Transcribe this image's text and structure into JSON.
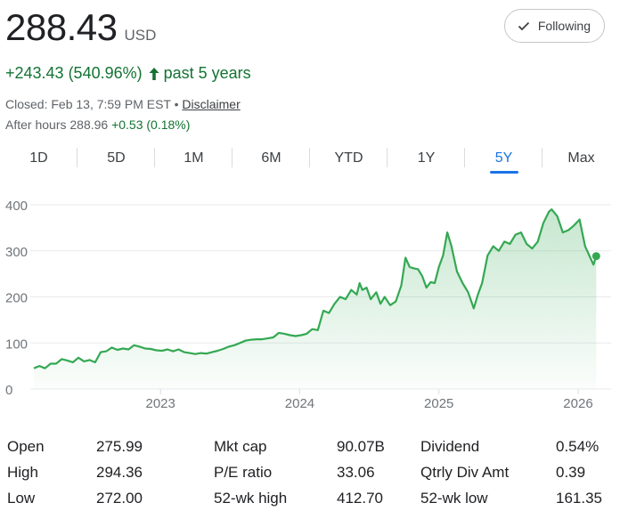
{
  "quote": {
    "price": "288.43",
    "currency": "USD",
    "change_text": "+243.43 (540.96%)",
    "period": "past 5 years",
    "closed_label": "Closed: Feb 13, 7:59 PM EST",
    "separator": " • ",
    "disclaimer": "Disclaimer",
    "after_hours_label": "After hours 288.96",
    "after_hours_change": "+0.53 (0.18%)"
  },
  "follow_button": {
    "label": "Following",
    "icon": "check-icon"
  },
  "ranges": [
    "1D",
    "5D",
    "1M",
    "6M",
    "YTD",
    "1Y",
    "5Y",
    "Max"
  ],
  "active_range": "5Y",
  "colors": {
    "up": "#137333",
    "line": "#34a853",
    "accent": "#1a73e8"
  },
  "chart_data": {
    "type": "area",
    "x_ticks": [
      "2023",
      "2024",
      "2025",
      "2026"
    ],
    "y_ticks": [
      "0",
      "100",
      "200",
      "300",
      "400"
    ],
    "xlim": [
      2022.09,
      2026.16
    ],
    "ylim": [
      0,
      400
    ],
    "points": [
      [
        2022.09,
        45
      ],
      [
        2022.13,
        50
      ],
      [
        2022.17,
        45
      ],
      [
        2022.21,
        55
      ],
      [
        2022.25,
        55
      ],
      [
        2022.29,
        65
      ],
      [
        2022.33,
        62
      ],
      [
        2022.37,
        58
      ],
      [
        2022.41,
        68
      ],
      [
        2022.45,
        60
      ],
      [
        2022.49,
        63
      ],
      [
        2022.53,
        58
      ],
      [
        2022.57,
        80
      ],
      [
        2022.61,
        82
      ],
      [
        2022.65,
        90
      ],
      [
        2022.69,
        85
      ],
      [
        2022.73,
        88
      ],
      [
        2022.77,
        86
      ],
      [
        2022.81,
        95
      ],
      [
        2022.85,
        92
      ],
      [
        2022.89,
        88
      ],
      [
        2022.93,
        87
      ],
      [
        2022.97,
        84
      ],
      [
        2023.01,
        83
      ],
      [
        2023.05,
        86
      ],
      [
        2023.09,
        82
      ],
      [
        2023.13,
        86
      ],
      [
        2023.17,
        80
      ],
      [
        2023.21,
        78
      ],
      [
        2023.25,
        76
      ],
      [
        2023.29,
        78
      ],
      [
        2023.33,
        77
      ],
      [
        2023.37,
        80
      ],
      [
        2023.41,
        83
      ],
      [
        2023.45,
        87
      ],
      [
        2023.49,
        92
      ],
      [
        2023.53,
        95
      ],
      [
        2023.57,
        100
      ],
      [
        2023.61,
        105
      ],
      [
        2023.65,
        107
      ],
      [
        2023.69,
        108
      ],
      [
        2023.73,
        108
      ],
      [
        2023.77,
        110
      ],
      [
        2023.81,
        112
      ],
      [
        2023.85,
        122
      ],
      [
        2023.89,
        120
      ],
      [
        2023.93,
        117
      ],
      [
        2023.97,
        115
      ],
      [
        2024.01,
        117
      ],
      [
        2024.05,
        120
      ],
      [
        2024.09,
        130
      ],
      [
        2024.13,
        128
      ],
      [
        2024.17,
        170
      ],
      [
        2024.21,
        165
      ],
      [
        2024.25,
        185
      ],
      [
        2024.29,
        200
      ],
      [
        2024.33,
        195
      ],
      [
        2024.37,
        215
      ],
      [
        2024.41,
        205
      ],
      [
        2024.43,
        230
      ],
      [
        2024.45,
        215
      ],
      [
        2024.48,
        220
      ],
      [
        2024.51,
        195
      ],
      [
        2024.55,
        210
      ],
      [
        2024.58,
        185
      ],
      [
        2024.61,
        200
      ],
      [
        2024.65,
        182
      ],
      [
        2024.69,
        190
      ],
      [
        2024.73,
        225
      ],
      [
        2024.76,
        285
      ],
      [
        2024.79,
        265
      ],
      [
        2024.82,
        262
      ],
      [
        2024.85,
        260
      ],
      [
        2024.88,
        245
      ],
      [
        2024.91,
        220
      ],
      [
        2024.94,
        232
      ],
      [
        2024.97,
        230
      ],
      [
        2025.0,
        265
      ],
      [
        2025.03,
        290
      ],
      [
        2025.06,
        340
      ],
      [
        2025.09,
        310
      ],
      [
        2025.13,
        255
      ],
      [
        2025.17,
        230
      ],
      [
        2025.21,
        210
      ],
      [
        2025.25,
        175
      ],
      [
        2025.28,
        205
      ],
      [
        2025.31,
        230
      ],
      [
        2025.35,
        290
      ],
      [
        2025.39,
        310
      ],
      [
        2025.43,
        300
      ],
      [
        2025.47,
        320
      ],
      [
        2025.51,
        315
      ],
      [
        2025.55,
        335
      ],
      [
        2025.59,
        340
      ],
      [
        2025.63,
        315
      ],
      [
        2025.67,
        305
      ],
      [
        2025.71,
        320
      ],
      [
        2025.75,
        360
      ],
      [
        2025.79,
        385
      ],
      [
        2025.81,
        390
      ],
      [
        2025.85,
        375
      ],
      [
        2025.89,
        340
      ],
      [
        2025.93,
        345
      ],
      [
        2025.97,
        355
      ],
      [
        2026.01,
        368
      ],
      [
        2026.05,
        310
      ],
      [
        2026.08,
        290
      ],
      [
        2026.11,
        270
      ],
      [
        2026.13,
        288.43
      ]
    ],
    "last_value": 288.43
  },
  "stats": [
    {
      "label": "Open",
      "value": "275.99"
    },
    {
      "label": "High",
      "value": "294.36"
    },
    {
      "label": "Low",
      "value": "272.00"
    },
    {
      "label": "Mkt cap",
      "value": "90.07B"
    },
    {
      "label": "P/E ratio",
      "value": "33.06"
    },
    {
      "label": "52-wk high",
      "value": "412.70"
    },
    {
      "label": "Dividend",
      "value": "0.54%"
    },
    {
      "label": "Qtrly Div Amt",
      "value": "0.39"
    },
    {
      "label": "52-wk low",
      "value": "161.35"
    }
  ]
}
